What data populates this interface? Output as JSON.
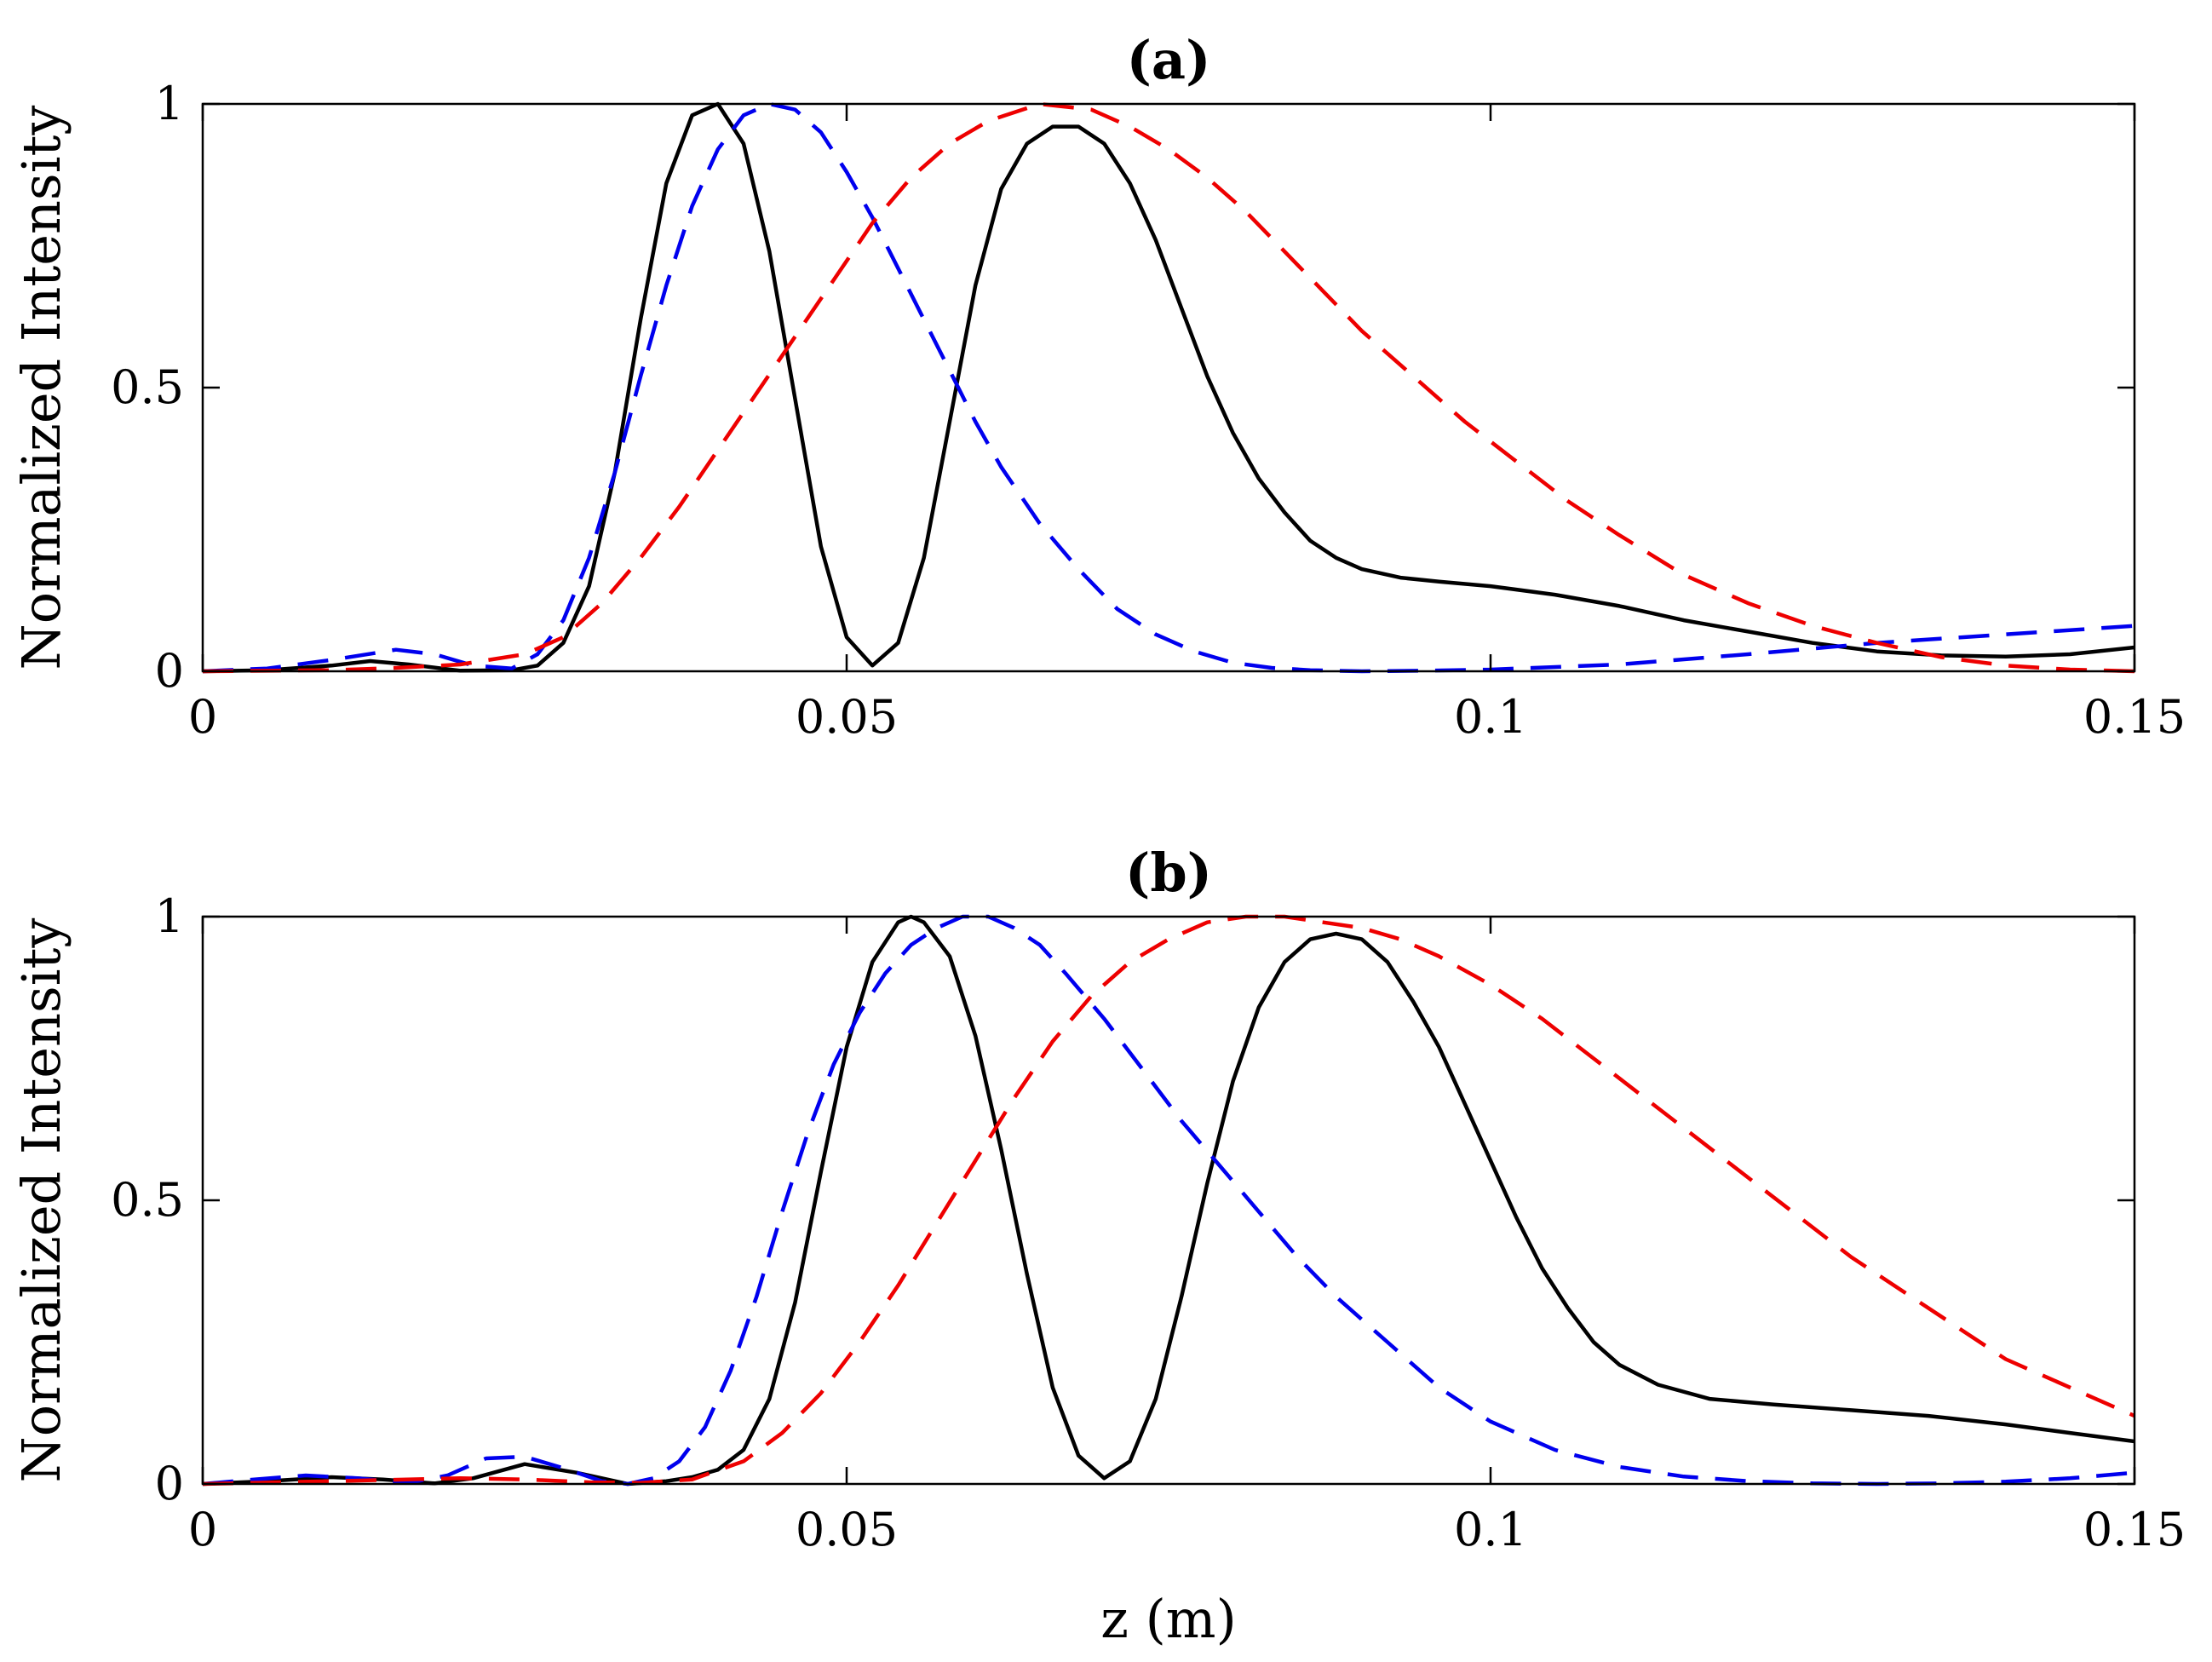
{
  "chart_data": [
    {
      "type": "line",
      "title": "(a)",
      "xlabel": "",
      "ylabel": "Normalized Intensity",
      "xlim": [
        0,
        0.15
      ],
      "ylim": [
        0,
        1
      ],
      "xticks": [
        "0",
        "0.05",
        "0.1",
        "0.15"
      ],
      "yticks": [
        "0",
        "0.5",
        "1"
      ],
      "grid": false,
      "series": [
        {
          "name": "solid",
          "color": "#000000",
          "style": "solid",
          "x": [
            0,
            0.005,
            0.01,
            0.013,
            0.016,
            0.02,
            0.024,
            0.026,
            0.028,
            0.03,
            0.032,
            0.034,
            0.036,
            0.038,
            0.04,
            0.042,
            0.044,
            0.046,
            0.048,
            0.05,
            0.052,
            0.054,
            0.056,
            0.058,
            0.06,
            0.062,
            0.064,
            0.066,
            0.068,
            0.07,
            0.072,
            0.074,
            0.076,
            0.078,
            0.08,
            0.082,
            0.084,
            0.086,
            0.088,
            0.09,
            0.093,
            0.096,
            0.1,
            0.105,
            0.11,
            0.115,
            0.12,
            0.125,
            0.13,
            0.135,
            0.14,
            0.145,
            0.15
          ],
          "y": [
            0,
            0.002,
            0.01,
            0.018,
            0.012,
            0.001,
            0.002,
            0.01,
            0.05,
            0.15,
            0.35,
            0.62,
            0.86,
            0.98,
            1.0,
            0.93,
            0.74,
            0.48,
            0.22,
            0.06,
            0.01,
            0.05,
            0.2,
            0.44,
            0.68,
            0.85,
            0.93,
            0.96,
            0.96,
            0.93,
            0.86,
            0.76,
            0.64,
            0.52,
            0.42,
            0.34,
            0.28,
            0.23,
            0.2,
            0.18,
            0.165,
            0.158,
            0.15,
            0.135,
            0.115,
            0.09,
            0.07,
            0.05,
            0.035,
            0.028,
            0.026,
            0.03,
            0.042
          ]
        },
        {
          "name": "blue dashed",
          "color": "#0000ee",
          "style": "dashed",
          "x": [
            0,
            0.005,
            0.01,
            0.015,
            0.018,
            0.021,
            0.024,
            0.026,
            0.028,
            0.03,
            0.032,
            0.034,
            0.036,
            0.038,
            0.04,
            0.042,
            0.044,
            0.046,
            0.048,
            0.05,
            0.052,
            0.054,
            0.056,
            0.058,
            0.06,
            0.062,
            0.065,
            0.068,
            0.071,
            0.074,
            0.077,
            0.08,
            0.083,
            0.086,
            0.09,
            0.095,
            0.1,
            0.11,
            0.12,
            0.13,
            0.14,
            0.15
          ],
          "y": [
            0,
            0.005,
            0.02,
            0.038,
            0.03,
            0.01,
            0.005,
            0.03,
            0.09,
            0.2,
            0.35,
            0.52,
            0.68,
            0.82,
            0.92,
            0.98,
            1.0,
            0.99,
            0.95,
            0.88,
            0.8,
            0.71,
            0.62,
            0.53,
            0.44,
            0.36,
            0.26,
            0.18,
            0.11,
            0.065,
            0.035,
            0.015,
            0.006,
            0.002,
            0.0,
            0.001,
            0.003,
            0.012,
            0.03,
            0.05,
            0.065,
            0.08
          ]
        },
        {
          "name": "red dashed",
          "color": "#ee0000",
          "style": "dashed",
          "x": [
            0,
            0.01,
            0.015,
            0.02,
            0.025,
            0.028,
            0.031,
            0.034,
            0.037,
            0.04,
            0.043,
            0.046,
            0.049,
            0.052,
            0.055,
            0.058,
            0.061,
            0.065,
            0.069,
            0.072,
            0.075,
            0.078,
            0.081,
            0.084,
            0.087,
            0.09,
            0.094,
            0.098,
            0.102,
            0.106,
            0.11,
            0.115,
            0.12,
            0.125,
            0.13,
            0.135,
            0.14,
            0.145,
            0.15
          ],
          "y": [
            0,
            0.002,
            0.006,
            0.012,
            0.03,
            0.06,
            0.12,
            0.2,
            0.29,
            0.39,
            0.49,
            0.59,
            0.69,
            0.79,
            0.87,
            0.93,
            0.97,
            1.0,
            0.99,
            0.96,
            0.92,
            0.87,
            0.81,
            0.74,
            0.67,
            0.6,
            0.52,
            0.44,
            0.37,
            0.3,
            0.24,
            0.17,
            0.12,
            0.08,
            0.05,
            0.025,
            0.01,
            0.003,
            0.0
          ]
        }
      ]
    },
    {
      "type": "line",
      "title": "(b)",
      "xlabel": "z (m)",
      "ylabel": "Normalized Intensity",
      "xlim": [
        0,
        0.15
      ],
      "ylim": [
        0,
        1
      ],
      "xticks": [
        "0",
        "0.05",
        "0.1",
        "0.15"
      ],
      "yticks": [
        "0",
        "0.5",
        "1"
      ],
      "grid": false,
      "series": [
        {
          "name": "solid",
          "color": "#000000",
          "style": "solid",
          "x": [
            0,
            0.005,
            0.01,
            0.014,
            0.018,
            0.021,
            0.025,
            0.029,
            0.033,
            0.036,
            0.038,
            0.04,
            0.042,
            0.044,
            0.046,
            0.048,
            0.05,
            0.052,
            0.054,
            0.055,
            0.056,
            0.058,
            0.06,
            0.062,
            0.064,
            0.066,
            0.068,
            0.07,
            0.072,
            0.074,
            0.076,
            0.078,
            0.08,
            0.082,
            0.084,
            0.086,
            0.088,
            0.09,
            0.092,
            0.094,
            0.096,
            0.098,
            0.1,
            0.102,
            0.104,
            0.106,
            0.108,
            0.11,
            0.113,
            0.117,
            0.122,
            0.128,
            0.134,
            0.14,
            0.145,
            0.15
          ],
          "y": [
            0,
            0.005,
            0.012,
            0.008,
            0.001,
            0.01,
            0.035,
            0.02,
            0.0,
            0.005,
            0.012,
            0.025,
            0.06,
            0.15,
            0.32,
            0.55,
            0.77,
            0.92,
            0.99,
            1.0,
            0.99,
            0.93,
            0.79,
            0.59,
            0.37,
            0.17,
            0.05,
            0.01,
            0.04,
            0.15,
            0.33,
            0.53,
            0.71,
            0.84,
            0.92,
            0.96,
            0.97,
            0.96,
            0.92,
            0.85,
            0.77,
            0.67,
            0.57,
            0.47,
            0.38,
            0.31,
            0.25,
            0.21,
            0.175,
            0.15,
            0.14,
            0.13,
            0.12,
            0.105,
            0.09,
            0.075
          ]
        },
        {
          "name": "blue dashed",
          "color": "#0000ee",
          "style": "dashed",
          "x": [
            0,
            0.004,
            0.008,
            0.012,
            0.016,
            0.019,
            0.022,
            0.025,
            0.028,
            0.031,
            0.033,
            0.035,
            0.037,
            0.039,
            0.041,
            0.043,
            0.045,
            0.047,
            0.049,
            0.051,
            0.053,
            0.055,
            0.057,
            0.059,
            0.061,
            0.063,
            0.065,
            0.067,
            0.07,
            0.073,
            0.076,
            0.079,
            0.082,
            0.085,
            0.088,
            0.092,
            0.096,
            0.1,
            0.105,
            0.11,
            0.115,
            0.12,
            0.125,
            0.13,
            0.135,
            0.14,
            0.145,
            0.15
          ],
          "y": [
            0,
            0.008,
            0.015,
            0.01,
            0.002,
            0.015,
            0.045,
            0.048,
            0.028,
            0.005,
            0.0,
            0.01,
            0.04,
            0.1,
            0.2,
            0.33,
            0.48,
            0.62,
            0.74,
            0.83,
            0.9,
            0.95,
            0.98,
            1.0,
            1.0,
            0.98,
            0.95,
            0.9,
            0.82,
            0.73,
            0.64,
            0.56,
            0.48,
            0.4,
            0.33,
            0.25,
            0.17,
            0.11,
            0.06,
            0.03,
            0.013,
            0.005,
            0.001,
            0.0,
            0.001,
            0.004,
            0.01,
            0.02
          ]
        },
        {
          "name": "red dashed",
          "color": "#ee0000",
          "style": "dashed",
          "x": [
            0,
            0.01,
            0.02,
            0.025,
            0.03,
            0.034,
            0.038,
            0.042,
            0.045,
            0.048,
            0.051,
            0.054,
            0.057,
            0.06,
            0.063,
            0.066,
            0.069,
            0.072,
            0.075,
            0.078,
            0.081,
            0.084,
            0.087,
            0.09,
            0.093,
            0.096,
            0.1,
            0.104,
            0.108,
            0.112,
            0.116,
            0.12,
            0.124,
            0.128,
            0.132,
            0.136,
            0.14,
            0.145,
            0.15
          ],
          "y": [
            0,
            0.005,
            0.01,
            0.008,
            0.003,
            0.002,
            0.008,
            0.04,
            0.09,
            0.16,
            0.25,
            0.35,
            0.46,
            0.57,
            0.68,
            0.78,
            0.86,
            0.92,
            0.96,
            0.99,
            1.0,
            1.0,
            0.99,
            0.98,
            0.96,
            0.93,
            0.88,
            0.82,
            0.75,
            0.68,
            0.61,
            0.54,
            0.47,
            0.4,
            0.34,
            0.28,
            0.22,
            0.17,
            0.12
          ]
        }
      ]
    }
  ]
}
